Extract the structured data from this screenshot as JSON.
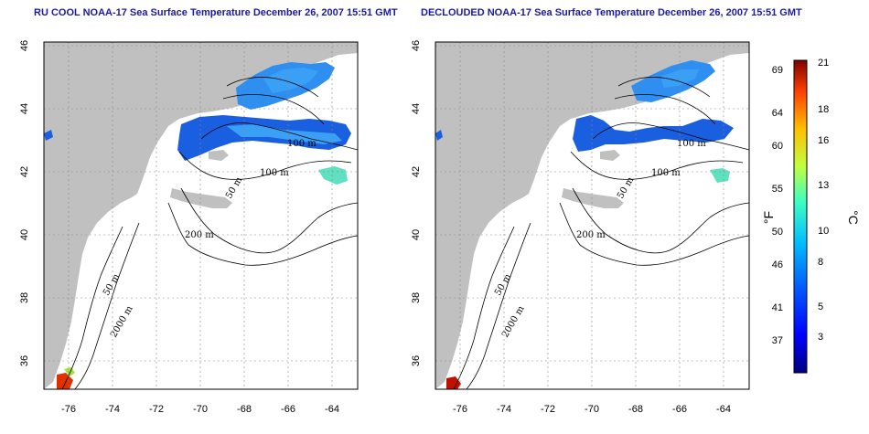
{
  "panels": [
    {
      "title": "RU COOL NOAA-17 Sea Surface Temperature December 26, 2007 15:51 GMT"
    },
    {
      "title": "DECLOUDED NOAA-17 Sea Surface Temperature December 26, 2007 15:51 GMT"
    }
  ],
  "map": {
    "lon_ticks": [
      "-76",
      "-74",
      "-72",
      "-70",
      "-68",
      "-66",
      "-64"
    ],
    "lat_ticks": [
      "46",
      "44",
      "42",
      "40",
      "38",
      "36"
    ],
    "lon_range": [
      -77.2,
      -62.9
    ],
    "lat_range": [
      35,
      46
    ],
    "isobath_labels": [
      "100 m",
      "100 m",
      "50 m",
      "200 m",
      "50 m",
      "2000 m"
    ],
    "land_color": "#c0c0c0",
    "contour_color": "#000000"
  },
  "colorbar": {
    "fahrenheit_label": "°F",
    "celsius_label": "°C",
    "fahrenheit_ticks": [
      "69",
      "64",
      "60",
      "55",
      "50",
      "46",
      "41",
      "37"
    ],
    "celsius_ticks": [
      "21",
      "18",
      "16",
      "13",
      "10",
      "8",
      "5",
      "3"
    ],
    "colors": [
      "#00007f",
      "#0000ff",
      "#0060ff",
      "#00c0ff",
      "#40ffc0",
      "#c0ff40",
      "#ffc000",
      "#ff4000",
      "#7f0000"
    ]
  }
}
